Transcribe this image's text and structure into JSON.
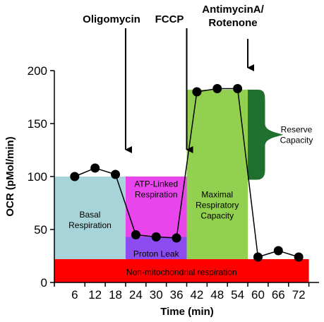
{
  "chart_data": {
    "type": "line",
    "xlabel": "Time (min)",
    "ylabel": "OCR (pMol/min)",
    "xlim": [
      0,
      78
    ],
    "ylim": [
      0,
      200
    ],
    "x_ticks": [
      "6",
      "12",
      "18",
      "24",
      "30",
      "36",
      "42",
      "48",
      "54",
      "60",
      "66",
      "72"
    ],
    "y_ticks": [
      "0",
      "50",
      "100",
      "150",
      "200"
    ],
    "series": [
      {
        "x": [
          6,
          12,
          18,
          24,
          30,
          36,
          42,
          48,
          54,
          60,
          66,
          72
        ],
        "y": [
          100,
          108,
          102,
          45,
          43,
          42,
          180,
          183,
          183,
          24,
          30,
          24
        ]
      }
    ],
    "injections": [
      {
        "label": [
          "Oligomycin"
        ],
        "x": 21
      },
      {
        "label": [
          "FCCP"
        ],
        "x": 39
      },
      {
        "label": [
          "AntimycinA/",
          "Rotenone"
        ],
        "x": 57
      }
    ],
    "regions": [
      {
        "label": [
          "Non-mitochondrial respiration"
        ],
        "x0": 0,
        "x1": 75,
        "y0": 0,
        "y1": 22,
        "color": "#ff0000"
      },
      {
        "label": [
          "Basal",
          "Respiration"
        ],
        "x0": 0,
        "x1": 21,
        "y0": 22,
        "y1": 100,
        "color": "#a6d4d9"
      },
      {
        "label": [
          "ATP-Linked",
          "Respiration"
        ],
        "x0": 21,
        "x1": 39,
        "y0": 43,
        "y1": 100,
        "color": "#e845ec"
      },
      {
        "label": [
          "Proton Leak"
        ],
        "x0": 21,
        "x1": 39,
        "y0": 22,
        "y1": 43,
        "color": "#8c4cf0"
      },
      {
        "label": [
          "Maximal",
          "Respiratory",
          "Capacity"
        ],
        "x0": 39,
        "x1": 57,
        "y0": 22,
        "y1": 182,
        "color": "#92d050"
      },
      {
        "label": [
          "Reserve",
          "Capacity"
        ],
        "x0": 57,
        "x1": 60,
        "y0": 97,
        "y1": 182,
        "color": "#1f6f2e"
      }
    ]
  }
}
